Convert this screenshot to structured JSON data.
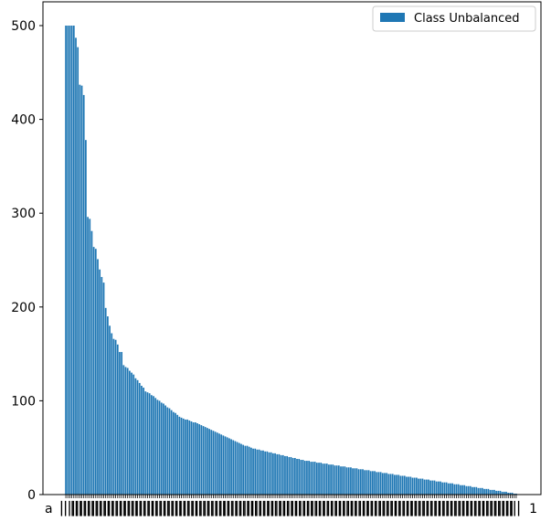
{
  "chart_data": {
    "type": "bar",
    "title": "",
    "xlabel": "",
    "ylabel": "",
    "ylim": [
      0,
      520
    ],
    "yticks": [
      0,
      100,
      200,
      300,
      400,
      500
    ],
    "xtick_labels_first": "a",
    "xtick_labels_last": "1",
    "legend": {
      "position": "top-right",
      "entries": [
        "Class Unbalanced"
      ]
    },
    "grid": false,
    "bar_color": "#1f77b4",
    "series": [
      {
        "name": "Class Unbalanced",
        "values": [
          500,
          500,
          500,
          500,
          500,
          487,
          477,
          437,
          436,
          426,
          378,
          296,
          294,
          281,
          264,
          262,
          251,
          240,
          232,
          226,
          199,
          190,
          180,
          172,
          166,
          165,
          160,
          152,
          152,
          138,
          136,
          135,
          132,
          130,
          128,
          124,
          122,
          119,
          116,
          114,
          110,
          109,
          108,
          106,
          105,
          103,
          101,
          100,
          98,
          97,
          95,
          93,
          92,
          90,
          88,
          87,
          85,
          83,
          82,
          81,
          80,
          80,
          79,
          78,
          77,
          77,
          76,
          75,
          74,
          73,
          72,
          71,
          70,
          69,
          68,
          67,
          66,
          65,
          64,
          63,
          62,
          61,
          60,
          59,
          58,
          57,
          56,
          55,
          54,
          53,
          52,
          52,
          51,
          50,
          49,
          49,
          48,
          48,
          47,
          47,
          46,
          46,
          45,
          45,
          44,
          44,
          43,
          43,
          42,
          42,
          41,
          41,
          40,
          40,
          39,
          39,
          38,
          38,
          37,
          37,
          36,
          36,
          36,
          35,
          35,
          35,
          34,
          34,
          34,
          33,
          33,
          33,
          32,
          32,
          32,
          31,
          31,
          31,
          30,
          30,
          30,
          29,
          29,
          29,
          28,
          28,
          28,
          27,
          27,
          27,
          26,
          26,
          26,
          25,
          25,
          25,
          24,
          24,
          24,
          23,
          23,
          23,
          22,
          22,
          22,
          21,
          21,
          21,
          20,
          20,
          20,
          19,
          19,
          19,
          18,
          18,
          18,
          17,
          17,
          17,
          16,
          16,
          16,
          15,
          15,
          15,
          14,
          14,
          14,
          13,
          13,
          13,
          12,
          12,
          12,
          11,
          11,
          11,
          10,
          10,
          10,
          9,
          9,
          9,
          8,
          8,
          8,
          7,
          7,
          7,
          6,
          6,
          6,
          5,
          5,
          5,
          4,
          4,
          4,
          3,
          3,
          3,
          2,
          2,
          2,
          1,
          1
        ]
      }
    ]
  }
}
